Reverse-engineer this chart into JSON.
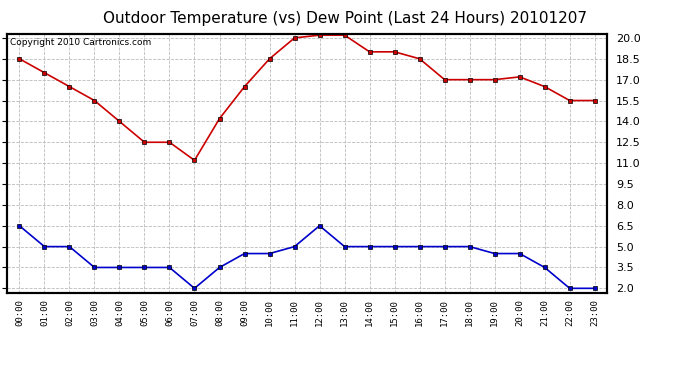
{
  "title": "Outdoor Temperature (vs) Dew Point (Last 24 Hours) 20101207",
  "copyright": "Copyright 2010 Cartronics.com",
  "hours": [
    "00:00",
    "01:00",
    "02:00",
    "03:00",
    "04:00",
    "05:00",
    "06:00",
    "07:00",
    "08:00",
    "09:00",
    "10:00",
    "11:00",
    "12:00",
    "13:00",
    "14:00",
    "15:00",
    "16:00",
    "17:00",
    "18:00",
    "19:00",
    "20:00",
    "21:00",
    "22:00",
    "23:00"
  ],
  "temp": [
    18.5,
    17.5,
    16.5,
    15.5,
    14.0,
    12.5,
    12.5,
    11.2,
    14.2,
    16.5,
    18.5,
    20.0,
    20.2,
    20.2,
    19.0,
    19.0,
    18.5,
    17.0,
    17.0,
    17.0,
    17.2,
    16.5,
    15.5,
    15.5
  ],
  "dewpoint": [
    6.5,
    5.0,
    5.0,
    3.5,
    3.5,
    3.5,
    3.5,
    2.0,
    3.5,
    4.5,
    4.5,
    5.0,
    6.5,
    5.0,
    5.0,
    5.0,
    5.0,
    5.0,
    5.0,
    4.5,
    4.5,
    3.5,
    2.0,
    2.0
  ],
  "temp_color": "#cc0000",
  "dew_color": "#0000cc",
  "bg_color": "#ffffff",
  "grid_color": "#bbbbbb",
  "ylim_min": 2.0,
  "ylim_max": 20.0,
  "yticks": [
    2.0,
    3.5,
    5.0,
    6.5,
    8.0,
    9.5,
    11.0,
    12.5,
    14.0,
    15.5,
    17.0,
    18.5,
    20.0
  ],
  "title_fontsize": 11,
  "copyright_fontsize": 6.5,
  "marker": "s",
  "marker_size": 3,
  "linewidth": 1.2
}
